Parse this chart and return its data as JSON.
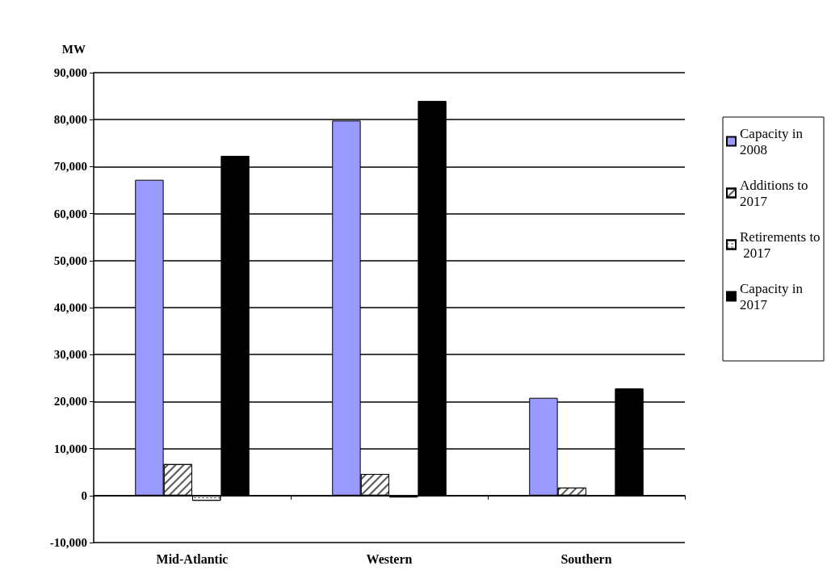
{
  "chart_data": {
    "type": "bar",
    "ylabel": "MW",
    "categories": [
      "Mid-Atlantic",
      "Western",
      "Southern"
    ],
    "series": [
      {
        "name": "Capacity in 2008",
        "color": "#9999ff",
        "values": [
          67200,
          79800,
          20800
        ]
      },
      {
        "name": "Additions to 2017",
        "color": "#ffffff",
        "values": [
          6700,
          4600,
          1700
        ]
      },
      {
        "name": "Retirements to 2017",
        "color": "#ffffff",
        "values": [
          -1100,
          -400,
          null
        ]
      },
      {
        "name": "Capacity in 2017",
        "color": "#000000",
        "values": [
          72300,
          84000,
          22800
        ]
      }
    ],
    "ylim": [
      -10000,
      90000
    ],
    "yticks": [
      {
        "value": -10000,
        "label": "-10,000"
      },
      0,
      {
        "value": 10000,
        "label": "10,000"
      },
      {
        "value": 20000,
        "label": "20,000"
      },
      {
        "value": 30000,
        "label": "30,000"
      },
      {
        "value": 40000,
        "label": "40,000"
      },
      {
        "value": 50000,
        "label": "50,000"
      },
      {
        "value": 60000,
        "label": "60,000"
      },
      {
        "value": 70000,
        "label": "70,000"
      },
      {
        "value": 80000,
        "label": "80,000"
      },
      {
        "value": 90000,
        "label": "90,000"
      }
    ],
    "grid": "y",
    "legend": "right"
  }
}
